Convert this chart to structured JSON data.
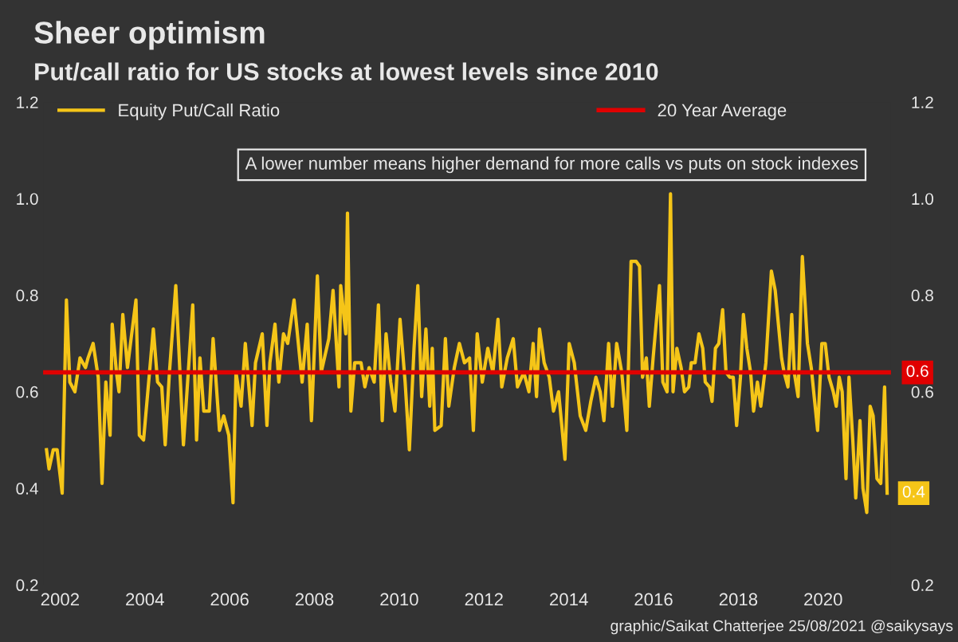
{
  "chart_data": {
    "type": "line",
    "title": "Sheer optimism",
    "subtitle": "Put/call ratio for US stocks at lowest levels since 2010",
    "series": [
      {
        "name": "Equity Put/Call Ratio",
        "color": "#f5c518",
        "x": [
          2001.68,
          2001.74,
          2001.84,
          2001.93,
          2002.05,
          2002.15,
          2002.23,
          2002.35,
          2002.47,
          2002.6,
          2002.66,
          2002.78,
          2002.9,
          2002.99,
          2003.08,
          2003.18,
          2003.23,
          2003.33,
          2003.39,
          2003.48,
          2003.59,
          2003.79,
          2003.87,
          2003.97,
          2004.2,
          2004.3,
          2004.4,
          2004.48,
          2004.58,
          2004.73,
          2004.91,
          2005.13,
          2005.22,
          2005.3,
          2005.39,
          2005.52,
          2005.61,
          2005.76,
          2005.86,
          2005.98,
          2006.08,
          2006.15,
          2006.27,
          2006.37,
          2006.53,
          2006.61,
          2006.77,
          2006.88,
          2006.95,
          2007.07,
          2007.16,
          2007.27,
          2007.37,
          2007.52,
          2007.71,
          2007.83,
          2007.93,
          2008.07,
          2008.16,
          2008.34,
          2008.44,
          2008.58,
          2008.62,
          2008.74,
          2008.78,
          2008.86,
          2008.95,
          2009.1,
          2009.19,
          2009.29,
          2009.41,
          2009.51,
          2009.6,
          2009.69,
          2009.8,
          2009.9,
          2010.02,
          2010.14,
          2010.24,
          2010.35,
          2010.44,
          2010.53,
          2010.63,
          2010.72,
          2010.78,
          2010.84,
          2010.99,
          2011.09,
          2011.17,
          2011.3,
          2011.42,
          2011.54,
          2011.66,
          2011.75,
          2011.84,
          2011.96,
          2012.09,
          2012.21,
          2012.33,
          2012.42,
          2012.55,
          2012.69,
          2012.79,
          2012.94,
          2013.06,
          2013.16,
          2013.24,
          2013.31,
          2013.42,
          2013.54,
          2013.64,
          2013.76,
          2013.91,
          2014.01,
          2014.13,
          2014.27,
          2014.4,
          2014.52,
          2014.64,
          2014.74,
          2014.83,
          2014.94,
          2015.03,
          2015.13,
          2015.25,
          2015.37,
          2015.47,
          2015.59,
          2015.67,
          2015.74,
          2015.83,
          2015.9,
          2015.99,
          2016.14,
          2016.22,
          2016.32,
          2016.4,
          2016.46,
          2016.55,
          2016.65,
          2016.73,
          2016.83,
          2016.89,
          2016.98,
          2017.07,
          2017.16,
          2017.22,
          2017.32,
          2017.38,
          2017.46,
          2017.54,
          2017.63,
          2017.71,
          2017.8,
          2017.88,
          2017.96,
          2018.05,
          2018.12,
          2018.2,
          2018.29,
          2018.36,
          2018.45,
          2018.53,
          2018.65,
          2018.78,
          2018.87,
          2019.02,
          2019.08,
          2019.17,
          2019.26,
          2019.32,
          2019.41,
          2019.51,
          2019.63,
          2019.72,
          2019.87,
          2019.97,
          2020.05,
          2020.14,
          2020.24,
          2020.31,
          2020.38,
          2020.45,
          2020.54,
          2020.61,
          2020.7,
          2020.77,
          2020.87,
          2020.94,
          2021.03,
          2021.11,
          2021.18,
          2021.27,
          2021.36,
          2021.45,
          2021.51
        ],
        "values": [
          0.48,
          0.44,
          0.48,
          0.48,
          0.39,
          0.79,
          0.62,
          0.6,
          0.67,
          0.65,
          0.67,
          0.7,
          0.63,
          0.41,
          0.62,
          0.51,
          0.74,
          0.64,
          0.6,
          0.76,
          0.65,
          0.79,
          0.51,
          0.5,
          0.73,
          0.62,
          0.61,
          0.49,
          0.64,
          0.82,
          0.49,
          0.78,
          0.5,
          0.67,
          0.56,
          0.56,
          0.71,
          0.52,
          0.55,
          0.51,
          0.37,
          0.64,
          0.57,
          0.7,
          0.53,
          0.66,
          0.72,
          0.53,
          0.66,
          0.74,
          0.62,
          0.72,
          0.7,
          0.79,
          0.62,
          0.74,
          0.54,
          0.84,
          0.64,
          0.71,
          0.81,
          0.61,
          0.82,
          0.72,
          0.97,
          0.56,
          0.66,
          0.66,
          0.61,
          0.65,
          0.62,
          0.78,
          0.54,
          0.72,
          0.62,
          0.56,
          0.75,
          0.62,
          0.48,
          0.69,
          0.82,
          0.59,
          0.73,
          0.57,
          0.69,
          0.52,
          0.53,
          0.71,
          0.57,
          0.65,
          0.7,
          0.66,
          0.67,
          0.52,
          0.72,
          0.62,
          0.69,
          0.64,
          0.75,
          0.61,
          0.67,
          0.71,
          0.61,
          0.64,
          0.6,
          0.7,
          0.59,
          0.73,
          0.66,
          0.63,
          0.56,
          0.6,
          0.46,
          0.7,
          0.66,
          0.55,
          0.52,
          0.58,
          0.63,
          0.6,
          0.54,
          0.7,
          0.57,
          0.7,
          0.64,
          0.52,
          0.87,
          0.87,
          0.86,
          0.63,
          0.67,
          0.57,
          0.67,
          0.82,
          0.62,
          0.6,
          1.01,
          0.6,
          0.69,
          0.65,
          0.6,
          0.61,
          0.66,
          0.66,
          0.72,
          0.69,
          0.62,
          0.61,
          0.58,
          0.69,
          0.7,
          0.77,
          0.64,
          0.63,
          0.63,
          0.53,
          0.63,
          0.76,
          0.69,
          0.64,
          0.56,
          0.62,
          0.57,
          0.66,
          0.85,
          0.81,
          0.67,
          0.64,
          0.61,
          0.76,
          0.64,
          0.59,
          0.88,
          0.7,
          0.65,
          0.52,
          0.7,
          0.7,
          0.63,
          0.6,
          0.57,
          0.63,
          0.6,
          0.42,
          0.63,
          0.5,
          0.38,
          0.54,
          0.4,
          0.35,
          0.57,
          0.55,
          0.42,
          0.41,
          0.61,
          0.39
        ]
      }
    ],
    "xlim": [
      2001.6,
      2021.6
    ],
    "xticks": [
      2002,
      2004,
      2006,
      2008,
      2010,
      2012,
      2014,
      2016,
      2018,
      2020
    ],
    "ylim": [
      0.2,
      1.2
    ],
    "yticks": [
      0.2,
      0.4,
      0.6,
      0.8,
      {
        "value": 1,
        "label": "1.0"
      },
      1.2
    ],
    "y2lim": [
      0.2,
      1.2
    ],
    "y2ticks": [
      0.2,
      0.6,
      0.8,
      {
        "value": 1,
        "label": "1.0"
      },
      1.2
    ],
    "ref_lines": [
      {
        "axis": "y",
        "value": 0.64,
        "label": "20 Year Average",
        "color": "#e00000"
      }
    ],
    "annotations": [
      "A lower number means higher demand for more calls vs puts on stock indexes",
      {
        "text": "0.6",
        "x": 2021.6,
        "y": 0.64
      },
      {
        "text": "0.4",
        "x": 2021.51,
        "y": 0.39
      },
      "graphic/Saikat Chatterjee 25/08/2021 @saikysays"
    ],
    "legend": "top",
    "grid": false,
    "marker": "none",
    "line_style": "solid"
  }
}
